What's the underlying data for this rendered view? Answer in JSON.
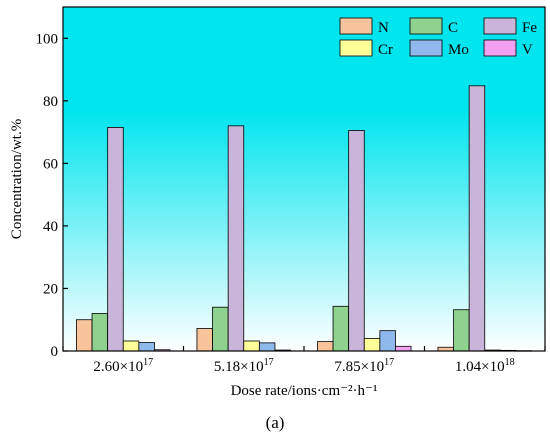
{
  "chart_data": {
    "type": "bar",
    "xlabel": "Dose rate/ions·cm⁻²·h⁻¹",
    "ylabel": "Concentration/wt.%",
    "ylim": [
      0,
      110
    ],
    "yticks": [
      0,
      20,
      40,
      60,
      80,
      100
    ],
    "categories": [
      {
        "base": "2.60×10",
        "exp": "17"
      },
      {
        "base": "5.18×10",
        "exp": "17"
      },
      {
        "base": "7.85×10",
        "exp": "17"
      },
      {
        "base": "1.04×10",
        "exp": "18"
      }
    ],
    "series": [
      {
        "name": "N",
        "color": "#f9c39b",
        "values": [
          10.0,
          7.2,
          3.0,
          1.2
        ]
      },
      {
        "name": "C",
        "color": "#8fd18f",
        "values": [
          12.0,
          14.0,
          14.3,
          13.2
        ]
      },
      {
        "name": "Fe",
        "color": "#c9b5d9",
        "values": [
          71.5,
          72.0,
          70.5,
          84.8
        ]
      },
      {
        "name": "Cr",
        "color": "#ffff99",
        "values": [
          3.2,
          3.2,
          4.0,
          0.3
        ]
      },
      {
        "name": "Mo",
        "color": "#8fb8ec",
        "values": [
          2.7,
          2.6,
          6.5,
          0.2
        ]
      },
      {
        "name": "V",
        "color": "#f2a0f2",
        "values": [
          0.4,
          0.3,
          1.5,
          0.1
        ]
      }
    ],
    "legend_position": "top-right",
    "grid": false,
    "background": {
      "top": "#00e5ee",
      "bottom": "#ffffff"
    }
  },
  "caption": "(a)"
}
